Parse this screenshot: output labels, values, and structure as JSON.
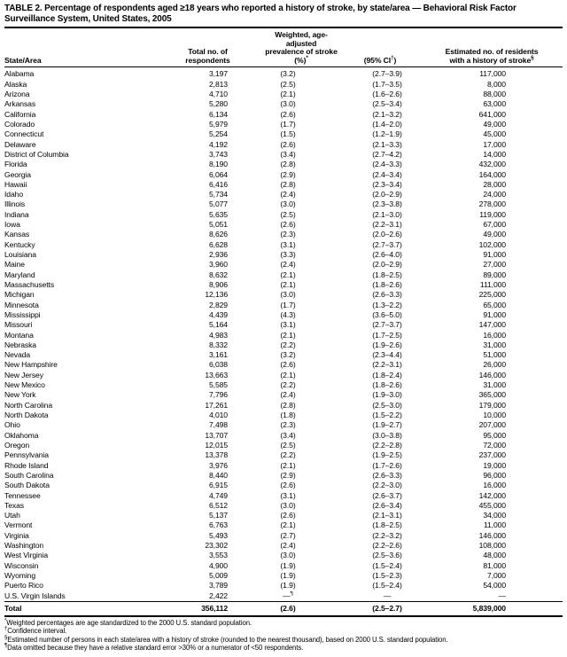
{
  "title": "TABLE 2. Percentage of respondents aged ≥18 years who reported a history of stroke, by state/area — Behavioral Risk Factor Surveillance System, United States, 2005",
  "table": {
    "columns": [
      {
        "id": "state",
        "lines": [
          "State/Area"
        ]
      },
      {
        "id": "respondents",
        "lines": [
          "Total no. of",
          "respondents"
        ]
      },
      {
        "id": "prevalence",
        "lines": [
          "Weighted, age-adjusted",
          "prevalence of stroke",
          "(%)*"
        ]
      },
      {
        "id": "ci",
        "lines": [
          "(95% CI†)"
        ]
      },
      {
        "id": "estimated",
        "lines": [
          "Estimated no. of residents",
          "with a history of stroke§"
        ]
      }
    ],
    "rows": [
      {
        "state": "Alabama",
        "respondents": "3,197",
        "prevalence": "(3.2)",
        "ci": "(2.7–3.9)",
        "estimated": "117,000"
      },
      {
        "state": "Alaska",
        "respondents": "2,813",
        "prevalence": "(2.5)",
        "ci": "(1.7–3.5)",
        "estimated": "8,000"
      },
      {
        "state": "Arizona",
        "respondents": "4,710",
        "prevalence": "(2.1)",
        "ci": "(1.6–2.6)",
        "estimated": "88,000"
      },
      {
        "state": "Arkansas",
        "respondents": "5,280",
        "prevalence": "(3.0)",
        "ci": "(2.5–3.4)",
        "estimated": "63,000"
      },
      {
        "state": "California",
        "respondents": "6,134",
        "prevalence": "(2.6)",
        "ci": "(2.1–3.2)",
        "estimated": "641,000"
      },
      {
        "state": "Colorado",
        "respondents": "5,979",
        "prevalence": "(1.7)",
        "ci": "(1.4–2.0)",
        "estimated": "49,000"
      },
      {
        "state": "Connecticut",
        "respondents": "5,254",
        "prevalence": "(1.5)",
        "ci": "(1.2–1.9)",
        "estimated": "45,000"
      },
      {
        "state": "Delaware",
        "respondents": "4,192",
        "prevalence": "(2.6)",
        "ci": "(2.1–3.3)",
        "estimated": "17,000"
      },
      {
        "state": "District of Columbia",
        "respondents": "3,743",
        "prevalence": "(3.4)",
        "ci": "(2.7–4.2)",
        "estimated": "14,000"
      },
      {
        "state": "Florida",
        "respondents": "8,190",
        "prevalence": "(2.8)",
        "ci": "(2.4–3.3)",
        "estimated": "432,000"
      },
      {
        "state": "Georgia",
        "respondents": "6,064",
        "prevalence": "(2.9)",
        "ci": "(2.4–3.4)",
        "estimated": "164,000"
      },
      {
        "state": "Hawaii",
        "respondents": "6,416",
        "prevalence": "(2.8)",
        "ci": "(2.3–3.4)",
        "estimated": "28,000"
      },
      {
        "state": "Idaho",
        "respondents": "5,734",
        "prevalence": "(2.4)",
        "ci": "(2.0–2.9)",
        "estimated": "24,000"
      },
      {
        "state": "Illinois",
        "respondents": "5,077",
        "prevalence": "(3.0)",
        "ci": "(2.3–3.8)",
        "estimated": "278,000"
      },
      {
        "state": "Indiana",
        "respondents": "5,635",
        "prevalence": "(2.5)",
        "ci": "(2.1–3.0)",
        "estimated": "119,000"
      },
      {
        "state": "Iowa",
        "respondents": "5,051",
        "prevalence": "(2.6)",
        "ci": "(2.2–3.1)",
        "estimated": "67,000"
      },
      {
        "state": "Kansas",
        "respondents": "8,626",
        "prevalence": "(2.3)",
        "ci": "(2.0–2.6)",
        "estimated": "49,000"
      },
      {
        "state": "Kentucky",
        "respondents": "6,628",
        "prevalence": "(3.1)",
        "ci": "(2.7–3.7)",
        "estimated": "102,000"
      },
      {
        "state": "Louisiana",
        "respondents": "2,936",
        "prevalence": "(3.3)",
        "ci": "(2.6–4.0)",
        "estimated": "91,000"
      },
      {
        "state": "Maine",
        "respondents": "3,960",
        "prevalence": "(2.4)",
        "ci": "(2.0–2.9)",
        "estimated": "27,000"
      },
      {
        "state": "Maryland",
        "respondents": "8,632",
        "prevalence": "(2.1)",
        "ci": "(1.8–2.5)",
        "estimated": "89,000"
      },
      {
        "state": "Massachusetts",
        "respondents": "8,906",
        "prevalence": "(2.1)",
        "ci": "(1.8–2.6)",
        "estimated": "111,000"
      },
      {
        "state": "Michigan",
        "respondents": "12,136",
        "prevalence": "(3.0)",
        "ci": "(2.6–3.3)",
        "estimated": "225,000"
      },
      {
        "state": "Minnesota",
        "respondents": "2,829",
        "prevalence": "(1.7)",
        "ci": "(1.3–2.2)",
        "estimated": "65,000"
      },
      {
        "state": "Mississippi",
        "respondents": "4,439",
        "prevalence": "(4.3)",
        "ci": "(3.6–5.0)",
        "estimated": "91,000"
      },
      {
        "state": "Missouri",
        "respondents": "5,164",
        "prevalence": "(3.1)",
        "ci": "(2.7–3.7)",
        "estimated": "147,000"
      },
      {
        "state": "Montana",
        "respondents": "4,983",
        "prevalence": "(2.1)",
        "ci": "(1.7–2.5)",
        "estimated": "16,000"
      },
      {
        "state": "Nebraska",
        "respondents": "8,332",
        "prevalence": "(2.2)",
        "ci": "(1.9–2.6)",
        "estimated": "31,000"
      },
      {
        "state": "Nevada",
        "respondents": "3,161",
        "prevalence": "(3.2)",
        "ci": "(2.3–4.4)",
        "estimated": "51,000"
      },
      {
        "state": "New Hampshire",
        "respondents": "6,038",
        "prevalence": "(2.6)",
        "ci": "(2.2–3.1)",
        "estimated": "26,000"
      },
      {
        "state": "New Jersey",
        "respondents": "13,663",
        "prevalence": "(2.1)",
        "ci": "(1.8–2.4)",
        "estimated": "146,000"
      },
      {
        "state": "New Mexico",
        "respondents": "5,585",
        "prevalence": "(2.2)",
        "ci": "(1.8–2.6)",
        "estimated": "31,000"
      },
      {
        "state": "New York",
        "respondents": "7,796",
        "prevalence": "(2.4)",
        "ci": "(1.9–3.0)",
        "estimated": "365,000"
      },
      {
        "state": "North Carolina",
        "respondents": "17,261",
        "prevalence": "(2.8)",
        "ci": "(2.5–3.0)",
        "estimated": "179,000"
      },
      {
        "state": "North Dakota",
        "respondents": "4,010",
        "prevalence": "(1.8)",
        "ci": "(1.5–2.2)",
        "estimated": "10,000"
      },
      {
        "state": "Ohio",
        "respondents": "7,498",
        "prevalence": "(2.3)",
        "ci": "(1.9–2.7)",
        "estimated": "207,000"
      },
      {
        "state": "Oklahoma",
        "respondents": "13,707",
        "prevalence": "(3.4)",
        "ci": "(3.0–3.8)",
        "estimated": "95,000"
      },
      {
        "state": "Oregon",
        "respondents": "12,015",
        "prevalence": "(2.5)",
        "ci": "(2.2–2.8)",
        "estimated": "72,000"
      },
      {
        "state": "Pennsylvania",
        "respondents": "13,378",
        "prevalence": "(2.2)",
        "ci": "(1.9–2.5)",
        "estimated": "237,000"
      },
      {
        "state": "Rhode Island",
        "respondents": "3,976",
        "prevalence": "(2.1)",
        "ci": "(1.7–2.6)",
        "estimated": "19,000"
      },
      {
        "state": "South Carolina",
        "respondents": "8,440",
        "prevalence": "(2.9)",
        "ci": "(2.6–3.3)",
        "estimated": "96,000"
      },
      {
        "state": "South Dakota",
        "respondents": "6,915",
        "prevalence": "(2.6)",
        "ci": "(2.2–3.0)",
        "estimated": "16,000"
      },
      {
        "state": "Tennessee",
        "respondents": "4,749",
        "prevalence": "(3.1)",
        "ci": "(2.6–3.7)",
        "estimated": "142,000"
      },
      {
        "state": "Texas",
        "respondents": "6,512",
        "prevalence": "(3.0)",
        "ci": "(2.6–3.4)",
        "estimated": "455,000"
      },
      {
        "state": "Utah",
        "respondents": "5,137",
        "prevalence": "(2.6)",
        "ci": "(2.1–3.1)",
        "estimated": "34,000"
      },
      {
        "state": "Vermont",
        "respondents": "6,763",
        "prevalence": "(2.1)",
        "ci": "(1.8–2.5)",
        "estimated": "11,000"
      },
      {
        "state": "Virginia",
        "respondents": "5,493",
        "prevalence": "(2.7)",
        "ci": "(2.2–3.2)",
        "estimated": "146,000"
      },
      {
        "state": "Washington",
        "respondents": "23,302",
        "prevalence": "(2.4)",
        "ci": "(2.2–2.6)",
        "estimated": "108,000"
      },
      {
        "state": "West Virginia",
        "respondents": "3,553",
        "prevalence": "(3.0)",
        "ci": "(2.5–3.6)",
        "estimated": "48,000"
      },
      {
        "state": "Wisconsin",
        "respondents": "4,900",
        "prevalence": "(1.9)",
        "ci": "(1.5–2.4)",
        "estimated": "81,000"
      },
      {
        "state": "Wyoming",
        "respondents": "5,009",
        "prevalence": "(1.9)",
        "ci": "(1.5–2.3)",
        "estimated": "7,000"
      },
      {
        "state": "Puerto Rico",
        "respondents": "3,789",
        "prevalence": "(1.9)",
        "ci": "(1.5–2.4)",
        "estimated": "54,000"
      },
      {
        "state": "U.S. Virgin Islands",
        "respondents": "2,422",
        "prevalence": "—¶",
        "ci": "—",
        "estimated": "—"
      }
    ],
    "total": {
      "state": "Total",
      "respondents": "356,112",
      "prevalence": "(2.6)",
      "ci": "(2.5–2.7)",
      "estimated": "5,839,000"
    }
  },
  "footnotes": [
    {
      "marker": "*",
      "text": "Weighted percentages are age standardized to the 2000 U.S. standard population."
    },
    {
      "marker": "†",
      "text": "Confidence interval."
    },
    {
      "marker": "§",
      "text": "Estimated number of persons in each state/area with a history of stroke (rounded to the nearest thousand), based on 2000 U.S. standard population."
    },
    {
      "marker": "¶",
      "text": "Data omitted because they have a relative standard error >30% or a numerator of <50 respondents."
    }
  ]
}
